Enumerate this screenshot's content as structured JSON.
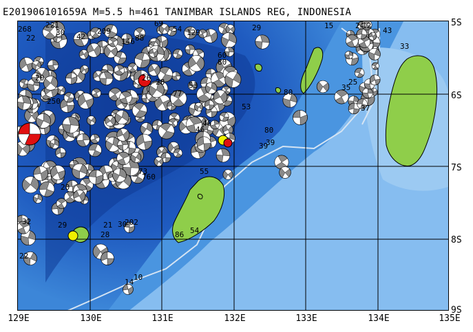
{
  "title": "E201906101659A  M=5.5  h=461  TANIMBAR ISLANDS REG, INDONESIA",
  "lon_labels": [
    "129E",
    "130E",
    "131E",
    "132E",
    "133E",
    "134E",
    "135E"
  ],
  "lat_labels": [
    "5S",
    "6S",
    "7S",
    "8S",
    "9S"
  ],
  "colors": {
    "deep_water": "#1a4fb0",
    "mid_water": "#3a86dc",
    "shallow_water": "#8ec0f0",
    "land": "#8fce4a",
    "grid": "#000000",
    "plate_boundary": "#cfe0f2",
    "beachball_gray": "#8a8a8a",
    "beachball_red": "#e01010",
    "beachball_yellow": "#f0f000"
  },
  "depth_labels": [
    "268",
    "221",
    "22",
    "30",
    "42",
    "209",
    "146",
    "88",
    "69",
    "54",
    "129",
    "28",
    "20",
    "250",
    "77",
    "53",
    "80",
    "29",
    "15",
    "24",
    "43",
    "33",
    "35",
    "25",
    "37",
    "46",
    "55",
    "73",
    "760",
    "86",
    "54",
    "28",
    "21",
    "30",
    "14",
    "10",
    "80",
    "202",
    "46",
    "22",
    "39",
    "32",
    "29",
    "20",
    "53",
    "80",
    "39",
    "12",
    "26",
    "60"
  ],
  "event": {
    "label": "target event",
    "depth_km": 461
  }
}
